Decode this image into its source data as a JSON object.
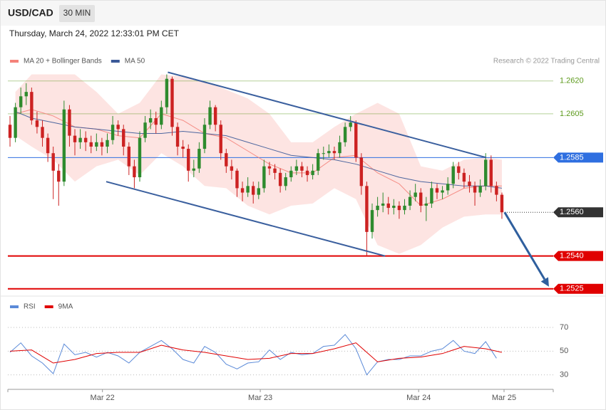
{
  "header": {
    "symbol": "USD/CAD",
    "timeframe": "30 MIN",
    "timestamp": "Thursday, March 24, 2022 12:33:01 PM CET"
  },
  "chart_data": [
    {
      "type": "candlestick",
      "source": "Research © 2022 Trading Central",
      "up_color": "#2e8b2e",
      "down_color": "#cc2222",
      "xlim": [
        -0.4,
        100.5
      ],
      "ylim": [
        1.2522,
        1.2644
      ],
      "candles": [
        [
          1.26,
          1.2604,
          1.259,
          1.2594
        ],
        [
          1.2594,
          1.261,
          1.2592,
          1.2608
        ],
        [
          1.2608,
          1.2617,
          1.2605,
          1.2613
        ],
        [
          1.2613,
          1.2619,
          1.2609,
          1.2615
        ],
        [
          1.2615,
          1.2617,
          1.26,
          1.2602
        ],
        [
          1.2602,
          1.2606,
          1.2596,
          1.2599
        ],
        [
          1.2599,
          1.2602,
          1.259,
          1.2594
        ],
        [
          1.2594,
          1.2596,
          1.2583,
          1.2587
        ],
        [
          1.2587,
          1.259,
          1.2566,
          1.2579
        ],
        [
          1.2579,
          1.2582,
          1.2563,
          1.2574
        ],
        [
          1.2574,
          1.2611,
          1.2572,
          1.2607
        ],
        [
          1.2607,
          1.2609,
          1.259,
          1.2595
        ],
        [
          1.2595,
          1.2598,
          1.2586,
          1.2592
        ],
        [
          1.2592,
          1.2598,
          1.2589,
          1.2594
        ],
        [
          1.2594,
          1.2597,
          1.2588,
          1.2592
        ],
        [
          1.2592,
          1.2595,
          1.2587,
          1.259
        ],
        [
          1.259,
          1.2596,
          1.2588,
          1.2592
        ],
        [
          1.2592,
          1.2594,
          1.2586,
          1.259
        ],
        [
          1.259,
          1.2596,
          1.2587,
          1.2593
        ],
        [
          1.2593,
          1.2604,
          1.2591,
          1.26
        ],
        [
          1.26,
          1.2602,
          1.2595,
          1.2598
        ],
        [
          1.2598,
          1.26,
          1.2586,
          1.259
        ],
        [
          1.259,
          1.2592,
          1.2577,
          1.2581
        ],
        [
          1.2581,
          1.2584,
          1.2571,
          1.2576
        ],
        [
          1.2576,
          1.2597,
          1.2574,
          1.2594
        ],
        [
          1.2594,
          1.2604,
          1.2592,
          1.2601
        ],
        [
          1.2601,
          1.2607,
          1.2598,
          1.2603
        ],
        [
          1.2603,
          1.2606,
          1.2596,
          1.26
        ],
        [
          1.26,
          1.2611,
          1.2598,
          1.2608
        ],
        [
          1.2608,
          1.2623,
          1.2605,
          1.2621
        ],
        [
          1.2621,
          1.2622,
          1.2595,
          1.2599
        ],
        [
          1.2599,
          1.2601,
          1.2586,
          1.259
        ],
        [
          1.259,
          1.2593,
          1.2585,
          1.2589
        ],
        [
          1.2589,
          1.2591,
          1.2574,
          1.2579
        ],
        [
          1.2579,
          1.2584,
          1.2576,
          1.258
        ],
        [
          1.258,
          1.2592,
          1.2578,
          1.2589
        ],
        [
          1.2589,
          1.2603,
          1.2587,
          1.26
        ],
        [
          1.26,
          1.2611,
          1.2598,
          1.2608
        ],
        [
          1.2608,
          1.2609,
          1.2597,
          1.26
        ],
        [
          1.26,
          1.2602,
          1.2584,
          1.2587
        ],
        [
          1.2587,
          1.2589,
          1.2578,
          1.2581
        ],
        [
          1.2581,
          1.2584,
          1.2575,
          1.2579
        ],
        [
          1.2579,
          1.258,
          1.2567,
          1.2571
        ],
        [
          1.2571,
          1.2574,
          1.2565,
          1.2569
        ],
        [
          1.2569,
          1.2576,
          1.2567,
          1.2572
        ],
        [
          1.2572,
          1.2574,
          1.2564,
          1.2568
        ],
        [
          1.2568,
          1.2574,
          1.2566,
          1.2571
        ],
        [
          1.2571,
          1.2584,
          1.2569,
          1.2581
        ],
        [
          1.2581,
          1.2583,
          1.2577,
          1.258
        ],
        [
          1.258,
          1.2582,
          1.2575,
          1.2578
        ],
        [
          1.2578,
          1.258,
          1.2569,
          1.2572
        ],
        [
          1.2572,
          1.2578,
          1.257,
          1.2576
        ],
        [
          1.2576,
          1.2581,
          1.2574,
          1.2579
        ],
        [
          1.2579,
          1.2584,
          1.2577,
          1.2581
        ],
        [
          1.2581,
          1.2583,
          1.2576,
          1.2579
        ],
        [
          1.2579,
          1.2581,
          1.2574,
          1.2577
        ],
        [
          1.2577,
          1.2582,
          1.2575,
          1.2579
        ],
        [
          1.2579,
          1.2589,
          1.2577,
          1.2587
        ],
        [
          1.2587,
          1.259,
          1.2584,
          1.2587
        ],
        [
          1.2587,
          1.2591,
          1.2585,
          1.2588
        ],
        [
          1.2588,
          1.259,
          1.2584,
          1.2587
        ],
        [
          1.2587,
          1.2595,
          1.2585,
          1.2592
        ],
        [
          1.2592,
          1.2601,
          1.259,
          1.2599
        ],
        [
          1.2599,
          1.2604,
          1.2597,
          1.2601
        ],
        [
          1.2601,
          1.2602,
          1.2583,
          1.2585
        ],
        [
          1.2585,
          1.2587,
          1.2568,
          1.2572
        ],
        [
          1.2572,
          1.2574,
          1.254,
          1.2551
        ],
        [
          1.2551,
          1.2564,
          1.2548,
          1.2561
        ],
        [
          1.2561,
          1.2567,
          1.2558,
          1.2563
        ],
        [
          1.2563,
          1.2569,
          1.256,
          1.2564
        ],
        [
          1.2564,
          1.2567,
          1.2559,
          1.2562
        ],
        [
          1.2562,
          1.2566,
          1.2559,
          1.2563
        ],
        [
          1.2563,
          1.2565,
          1.2557,
          1.2561
        ],
        [
          1.2561,
          1.2566,
          1.2559,
          1.2563
        ],
        [
          1.2563,
          1.257,
          1.2561,
          1.2567
        ],
        [
          1.2567,
          1.2573,
          1.2565,
          1.2569
        ],
        [
          1.2569,
          1.2571,
          1.256,
          1.2563
        ],
        [
          1.2563,
          1.2567,
          1.2556,
          1.2564
        ],
        [
          1.2564,
          1.2574,
          1.2562,
          1.2571
        ],
        [
          1.2571,
          1.2573,
          1.2566,
          1.2569
        ],
        [
          1.2569,
          1.2572,
          1.2566,
          1.257
        ],
        [
          1.257,
          1.2576,
          1.2568,
          1.2573
        ],
        [
          1.2573,
          1.2583,
          1.2571,
          1.2581
        ],
        [
          1.2581,
          1.2583,
          1.2575,
          1.2578
        ],
        [
          1.2578,
          1.258,
          1.2571,
          1.2574
        ],
        [
          1.2574,
          1.2577,
          1.2569,
          1.2572
        ],
        [
          1.2572,
          1.2574,
          1.2563,
          1.2569
        ],
        [
          1.2569,
          1.2575,
          1.2567,
          1.2572
        ],
        [
          1.2572,
          1.2587,
          1.257,
          1.2584
        ],
        [
          1.2584,
          1.2586,
          1.2569,
          1.2572
        ],
        [
          1.2572,
          1.2574,
          1.2565,
          1.2568
        ],
        [
          1.2568,
          1.2569,
          1.2557,
          1.256
        ]
      ],
      "series": [
        {
          "name": "MA 20 + Bollinger Bands",
          "color": "#f4827a",
          "x": [
            1,
            4,
            8,
            12,
            16,
            20,
            24,
            28,
            32,
            36,
            40,
            44,
            48,
            52,
            56,
            60,
            64,
            68,
            72,
            76,
            80,
            84,
            88,
            91
          ],
          "values": [
            1.2605,
            1.2607,
            1.2604,
            1.2599,
            1.2598,
            1.2595,
            1.2594,
            1.2605,
            1.2602,
            1.2596,
            1.2594,
            1.2588,
            1.2582,
            1.2578,
            1.2578,
            1.2585,
            1.2586,
            1.2578,
            1.2573,
            1.2563,
            1.2566,
            1.2571,
            1.2572,
            1.2572
          ],
          "upper": [
            1.2615,
            1.2623,
            1.2623,
            1.2623,
            1.2615,
            1.2605,
            1.261,
            1.2623,
            1.2622,
            1.262,
            1.2616,
            1.2612,
            1.2605,
            1.2592,
            1.2592,
            1.2599,
            1.2605,
            1.261,
            1.2605,
            1.2581,
            1.2579,
            1.2584,
            1.2585,
            1.2584
          ],
          "lower": [
            1.2595,
            1.259,
            1.2584,
            1.2574,
            1.2581,
            1.2584,
            1.2577,
            1.2587,
            1.2581,
            1.2572,
            1.2571,
            1.2563,
            1.2559,
            1.2563,
            1.2564,
            1.2571,
            1.2566,
            1.2545,
            1.2541,
            1.2545,
            1.2553,
            1.2558,
            1.2559,
            1.2559
          ]
        },
        {
          "name": "MA 50",
          "color": "#3b5998",
          "x": [
            1,
            4,
            8,
            12,
            16,
            20,
            24,
            28,
            32,
            36,
            40,
            44,
            48,
            52,
            56,
            60,
            64,
            68,
            72,
            76,
            80,
            84,
            88,
            91
          ],
          "values": [
            1.2606,
            1.2603,
            1.2601,
            1.2599,
            1.2598,
            1.2597,
            1.2596,
            1.2596,
            1.2597,
            1.2596,
            1.2595,
            1.2592,
            1.2589,
            1.2586,
            1.2585,
            1.2584,
            1.2582,
            1.2579,
            1.2576,
            1.2574,
            1.2573,
            1.2572,
            1.2572,
            1.2571
          ]
        }
      ],
      "levels": [
        {
          "value": 1.262,
          "label": "1.2620",
          "color": "#5c9a1c"
        },
        {
          "value": 1.2605,
          "label": "1.2605",
          "color": "#5c9a1c"
        },
        {
          "value": 1.2585,
          "label": "1.2585",
          "color": "#2f6fe0"
        },
        {
          "value": 1.256,
          "label": "1.2560",
          "color": "#333333"
        },
        {
          "value": 1.254,
          "label": "1.2540",
          "color": "#e00000"
        },
        {
          "value": 1.2525,
          "label": "1.2525",
          "color": "#e00000"
        }
      ],
      "trendlines": [
        {
          "x": [
            29.2,
            88.1
          ],
          "y": [
            1.2624,
            1.2585
          ],
          "color": "#3a5f9e"
        },
        {
          "x": [
            17.8,
            69.4
          ],
          "y": [
            1.2574,
            1.254
          ],
          "color": "#3a5f9e"
        }
      ],
      "arrow": {
        "x": [
          91.5,
          99.7
        ],
        "y": [
          1.256,
          1.2526
        ],
        "color": "#2f5f9e"
      }
    },
    {
      "type": "line",
      "xlim": [
        -0.4,
        100.5
      ],
      "ylim": [
        19,
        82
      ],
      "yticks": [
        70,
        50,
        30
      ],
      "xticks": [
        {
          "value": 17.1,
          "label": "Mar 22"
        },
        {
          "value": 46.3,
          "label": "Mar 23"
        },
        {
          "value": 75.6,
          "label": "Mar 24"
        },
        {
          "value": 91.4,
          "label": "Mar 25"
        }
      ],
      "series": [
        {
          "name": "RSI",
          "color": "#5b8ad8",
          "x": [
            0,
            2,
            4,
            6,
            8,
            10,
            12,
            14,
            16,
            18,
            20,
            22,
            24,
            26,
            28,
            30,
            32,
            34,
            36,
            38,
            40,
            42,
            44,
            46,
            48,
            50,
            52,
            54,
            56,
            58,
            60,
            62,
            64,
            66,
            68,
            70,
            72,
            74,
            76,
            78,
            80,
            82,
            84,
            86,
            88,
            90
          ],
          "values": [
            49,
            57,
            46,
            40,
            31,
            56,
            47,
            49,
            45,
            49,
            46,
            40,
            49,
            54,
            59,
            52,
            43,
            40,
            54,
            49,
            39,
            35,
            40,
            41,
            51,
            43,
            49,
            47,
            48,
            54,
            55,
            64,
            52,
            30,
            41,
            43,
            43,
            46,
            46,
            50,
            52,
            59,
            50,
            48,
            58,
            44
          ]
        },
        {
          "name": "9MA",
          "color": "#e00000",
          "x": [
            0,
            4,
            8,
            12,
            16,
            20,
            24,
            28,
            32,
            36,
            40,
            44,
            48,
            52,
            56,
            60,
            64,
            68,
            72,
            76,
            80,
            84,
            88,
            91
          ],
          "values": [
            50,
            51,
            40,
            43,
            48,
            49,
            49,
            55,
            51,
            49,
            46,
            43,
            44,
            48,
            48,
            52,
            57,
            41,
            44,
            45,
            48,
            54,
            52,
            49
          ]
        }
      ]
    }
  ]
}
